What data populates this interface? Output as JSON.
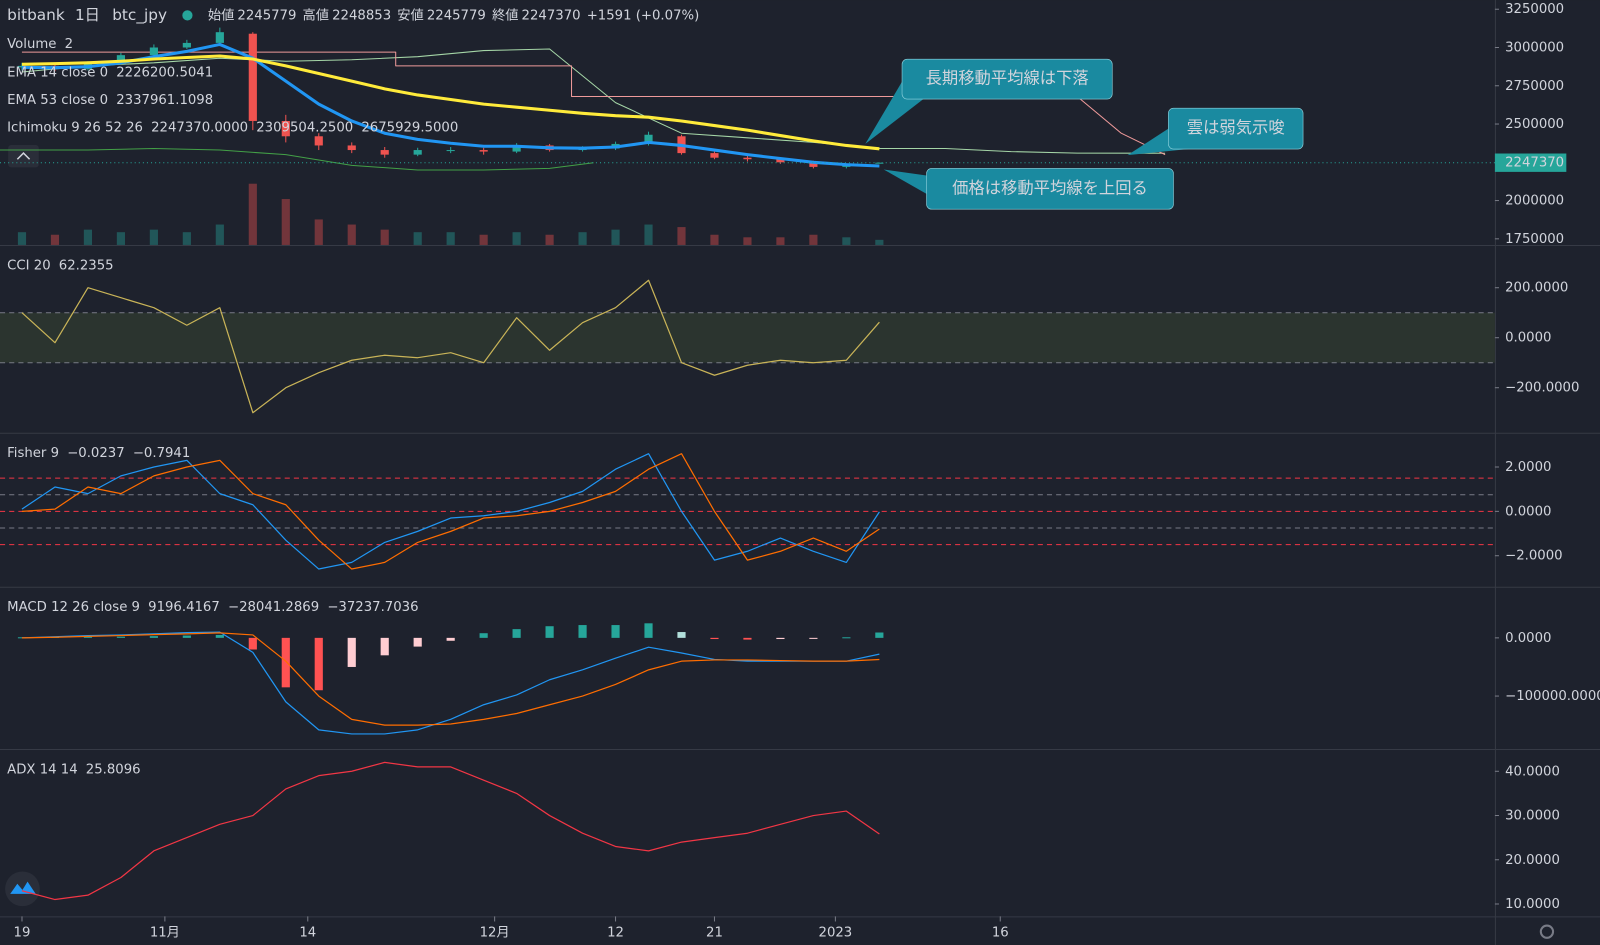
{
  "header": {
    "exchange": "bitbank",
    "interval": "1日",
    "symbol": "btc_jpy",
    "open_label": "始値",
    "open": 2245779,
    "high_label": "高値",
    "high": 2248853,
    "low_label": "安値",
    "low": 2245779,
    "close_label": "終値",
    "close": 2247370,
    "change": "+1591 (+0.07%)"
  },
  "x_axis": {
    "xlim": [
      -2,
      134
    ],
    "xticks": [
      {
        "value": 0,
        "label": "19"
      },
      {
        "value": 13,
        "label": "11月"
      },
      {
        "value": 26,
        "label": "14"
      },
      {
        "value": 43,
        "label": "12月"
      },
      {
        "value": 54,
        "label": "12"
      },
      {
        "value": 63,
        "label": "21"
      },
      {
        "value": 74,
        "label": "2023"
      },
      {
        "value": 89,
        "label": "16"
      }
    ]
  },
  "chart_data": [
    {
      "type": "candlestick",
      "x": [
        0,
        3,
        6,
        9,
        12,
        15,
        18,
        21,
        24,
        27,
        30,
        33,
        36,
        39,
        42,
        45,
        48,
        51,
        54,
        57,
        60,
        63,
        66,
        69,
        72,
        75,
        78
      ],
      "open": [
        2870000,
        2880000,
        2860000,
        2900000,
        2950000,
        3000000,
        3030000,
        3090000,
        2520000,
        2420000,
        2360000,
        2330000,
        2300000,
        2330000,
        2330000,
        2320000,
        2360000,
        2330000,
        2340000,
        2370000,
        2420000,
        2310000,
        2280000,
        2270000,
        2250000,
        2220000,
        2245779
      ],
      "high": [
        2900000,
        2895000,
        2910000,
        2965000,
        3020000,
        3050000,
        3130000,
        3100000,
        2560000,
        2440000,
        2380000,
        2350000,
        2345000,
        2350000,
        2345000,
        2375000,
        2370000,
        2355000,
        2385000,
        2450000,
        2430000,
        2320000,
        2295000,
        2280000,
        2260000,
        2240000,
        2248853
      ],
      "low": [
        2850000,
        2845000,
        2850000,
        2890000,
        2940000,
        2990000,
        3020000,
        2460000,
        2380000,
        2330000,
        2310000,
        2280000,
        2290000,
        2310000,
        2300000,
        2310000,
        2320000,
        2320000,
        2330000,
        2360000,
        2300000,
        2270000,
        2255000,
        2240000,
        2210000,
        2210000,
        2245779
      ],
      "close": [
        2880000,
        2860000,
        2900000,
        2950000,
        3000000,
        3030000,
        3100000,
        2520000,
        2420000,
        2360000,
        2330000,
        2300000,
        2330000,
        2330000,
        2320000,
        2360000,
        2330000,
        2340000,
        2370000,
        2430000,
        2310000,
        2280000,
        2270000,
        2250000,
        2220000,
        2230000,
        2247370
      ],
      "colors": {
        "up": "#26a69a",
        "down": "#ef5350"
      },
      "ylim": [
        1710000,
        3310000
      ],
      "yticks": [
        1750000,
        2000000,
        2500000,
        2750000,
        3000000,
        3250000
      ],
      "last_price": 2247370,
      "volume": {
        "name": "Volume",
        "reading": "2",
        "values": [
          5,
          4,
          6,
          5,
          6,
          5,
          8,
          24,
          18,
          10,
          8,
          6,
          5,
          5,
          4,
          5,
          4,
          5,
          6,
          8,
          7,
          4,
          3,
          3,
          4,
          3,
          2
        ]
      },
      "series": [
        {
          "name": "EMA 14 close 0",
          "reading": "2226200.5041",
          "color": "#2196f3",
          "values": [
            2870000,
            2868000,
            2875000,
            2900000,
            2940000,
            2975000,
            3020000,
            2930000,
            2780000,
            2630000,
            2520000,
            2440000,
            2400000,
            2375000,
            2355000,
            2355000,
            2345000,
            2342000,
            2350000,
            2380000,
            2360000,
            2330000,
            2300000,
            2275000,
            2250000,
            2235000,
            2226200.5041
          ]
        },
        {
          "name": "EMA 53 close 0",
          "reading": "2337961.1098",
          "color": "#ffeb3b",
          "values": [
            2890000,
            2895000,
            2900000,
            2910000,
            2925000,
            2935000,
            2945000,
            2925000,
            2880000,
            2830000,
            2780000,
            2730000,
            2690000,
            2660000,
            2630000,
            2610000,
            2590000,
            2570000,
            2555000,
            2545000,
            2520000,
            2490000,
            2460000,
            2425000,
            2390000,
            2360000,
            2337961.1098
          ]
        }
      ],
      "ichimoku": {
        "name": "Ichimoku 9 26 52 26",
        "readings": [
          "2247370.0000",
          "2309504.2500",
          "2675929.5000"
        ],
        "lines": [
          {
            "color": "#43a047",
            "x": [
              -2,
              6,
              12,
              18,
              24,
              30,
              36,
              42,
              48,
              52
            ],
            "values": [
              2330000,
              2330000,
              2340000,
              2330000,
              2300000,
              2230000,
              2200000,
              2200000,
              2210000,
              2247370
            ]
          },
          {
            "color": "#a5d6a7",
            "x": [
              0,
              6,
              12,
              18,
              24,
              30,
              36,
              42,
              48,
              54,
              60,
              66,
              72,
              78,
              84,
              90,
              96,
              104
            ],
            "values": [
              2840000,
              2880000,
              2900000,
              2930000,
              2910000,
              2920000,
              2940000,
              2980000,
              2990000,
              2640000,
              2440000,
              2410000,
              2380000,
              2340000,
              2340000,
              2320000,
              2310000,
              2309504.25
            ]
          },
          {
            "color": "#ef9a9a",
            "x": [
              0,
              34,
              34,
              50,
              50,
              96,
              100,
              104
            ],
            "values": [
              2970000,
              2970000,
              2880000,
              2880000,
              2680000,
              2680000,
              2440000,
              2300000
            ]
          }
        ]
      },
      "annotations": [
        "長期移動平均線は下落",
        "雲は弱気示唆",
        "価格は移動平均線を上回る"
      ]
    },
    {
      "type": "line",
      "name": "CCI 20",
      "x": [
        0,
        3,
        6,
        9,
        12,
        15,
        18,
        21,
        24,
        27,
        30,
        33,
        36,
        39,
        42,
        45,
        48,
        51,
        54,
        57,
        60,
        63,
        66,
        69,
        72,
        75,
        78
      ],
      "bands": [
        100,
        -100
      ],
      "series": [
        {
          "reading": "62.2355",
          "color": "#c9b458",
          "values": [
            100,
            -20,
            200,
            160,
            120,
            50,
            120,
            -300,
            -200,
            -140,
            -90,
            -70,
            -80,
            -60,
            -100,
            80,
            -50,
            60,
            120,
            230,
            -100,
            -150,
            -110,
            -90,
            -100,
            -90,
            62.2355
          ]
        }
      ],
      "ylim": [
        -380,
        367
      ],
      "yticks": [
        {
          "value": 200,
          "label": "200.0000"
        },
        {
          "value": 0,
          "label": "0.0000"
        },
        {
          "value": -200,
          "label": "−200.0000"
        }
      ]
    },
    {
      "type": "line",
      "name": "Fisher 9",
      "x": [
        0,
        3,
        6,
        9,
        12,
        15,
        18,
        21,
        24,
        27,
        30,
        33,
        36,
        39,
        42,
        45,
        48,
        51,
        54,
        57,
        60,
        63,
        66,
        69,
        72,
        75,
        78
      ],
      "levels": [
        1.5,
        0.75,
        0,
        -0.75,
        -1.5
      ],
      "level_colors": [
        "#f23645",
        "#787b86",
        "#f23645",
        "#787b86",
        "#f23645"
      ],
      "series": [
        {
          "reading": "−0.0237",
          "color": "#2196f3",
          "values": [
            0.1,
            1.1,
            0.8,
            1.6,
            2.0,
            2.3,
            0.8,
            0.3,
            -1.3,
            -2.6,
            -2.3,
            -1.4,
            -0.9,
            -0.3,
            -0.2,
            0.0,
            0.4,
            0.9,
            1.9,
            2.6,
            0.0,
            -2.2,
            -1.8,
            -1.2,
            -1.8,
            -2.3,
            -0.0237
          ]
        },
        {
          "reading": "−0.7941",
          "color": "#ff6d00",
          "values": [
            0.0,
            0.1,
            1.1,
            0.8,
            1.6,
            2.0,
            2.3,
            0.8,
            0.3,
            -1.3,
            -2.6,
            -2.3,
            -1.4,
            -0.9,
            -0.3,
            -0.2,
            0.0,
            0.4,
            0.9,
            1.9,
            2.6,
            0.0,
            -2.2,
            -1.8,
            -1.2,
            -1.8,
            -0.7941
          ]
        }
      ],
      "ylim": [
        -3.4,
        3.5
      ],
      "yticks": [
        {
          "value": 2,
          "label": "2.0000"
        },
        {
          "value": 0,
          "label": "0.0000"
        },
        {
          "value": -2,
          "label": "−2.0000"
        }
      ]
    },
    {
      "type": "line",
      "name": "MACD 12 26 close 9",
      "x": [
        0,
        3,
        6,
        9,
        12,
        15,
        18,
        21,
        24,
        27,
        30,
        33,
        36,
        39,
        42,
        45,
        48,
        51,
        54,
        57,
        60,
        63,
        66,
        69,
        72,
        75,
        78
      ],
      "histogram": {
        "reading": "9196.4167",
        "colors": [
          "#26a69a",
          "#b2dfdb",
          "#ffcdd2",
          "#ff5252"
        ],
        "values": [
          1000,
          1500,
          2000,
          2000,
          3000,
          4000,
          5000,
          -20000,
          -85000,
          -90000,
          -50000,
          -30000,
          -15000,
          -5000,
          8000,
          15000,
          20000,
          22000,
          22000,
          25000,
          10000,
          -2000,
          -3000,
          -2000,
          -1000,
          1000,
          9196.4167
        ]
      },
      "series": [
        {
          "reading": "−28041.2869",
          "color": "#2196f3",
          "values": [
            0,
            2000,
            4000,
            5000,
            7000,
            9000,
            10000,
            -25000,
            -110000,
            -158000,
            -165000,
            -165000,
            -158000,
            -140000,
            -115000,
            -98000,
            -72000,
            -55000,
            -35000,
            -16000,
            -26000,
            -37000,
            -40000,
            -40000,
            -40000,
            -40000,
            -28041.2869
          ]
        },
        {
          "reading": "−37237.7036",
          "color": "#ff6d00",
          "values": [
            0,
            1000,
            2500,
            4000,
            5500,
            7000,
            8500,
            5000,
            -40000,
            -100000,
            -140000,
            -150000,
            -150000,
            -148000,
            -140000,
            -130000,
            -115000,
            -100000,
            -80000,
            -55000,
            -40000,
            -38000,
            -38000,
            -39000,
            -40000,
            -40000,
            -37237.7036
          ]
        }
      ],
      "ylim": [
        -191000,
        86000
      ],
      "yticks": [
        {
          "value": 0,
          "label": "0.0000"
        },
        {
          "value": -100000,
          "label": "−100000.0000"
        }
      ]
    },
    {
      "type": "line",
      "name": "ADX 14 14",
      "x": [
        0,
        3,
        6,
        9,
        12,
        15,
        18,
        21,
        24,
        27,
        30,
        33,
        36,
        39,
        42,
        45,
        48,
        51,
        54,
        57,
        60,
        63,
        66,
        69,
        72,
        75,
        78
      ],
      "series": [
        {
          "reading": "25.8096",
          "color": "#f23645",
          "values": [
            13,
            11,
            12,
            16,
            22,
            25,
            28,
            30,
            36,
            39,
            40,
            42,
            41,
            41,
            38,
            35,
            30,
            26,
            23,
            22,
            24,
            25,
            26,
            28,
            30,
            31,
            25.8096
          ]
        }
      ],
      "ylim": [
        7.2,
        44.8
      ],
      "yticks": [
        {
          "value": 40,
          "label": "40.0000"
        },
        {
          "value": 30,
          "label": "30.0000"
        },
        {
          "value": 20,
          "label": "20.0000"
        },
        {
          "value": 10,
          "label": "10.0000"
        }
      ]
    }
  ]
}
